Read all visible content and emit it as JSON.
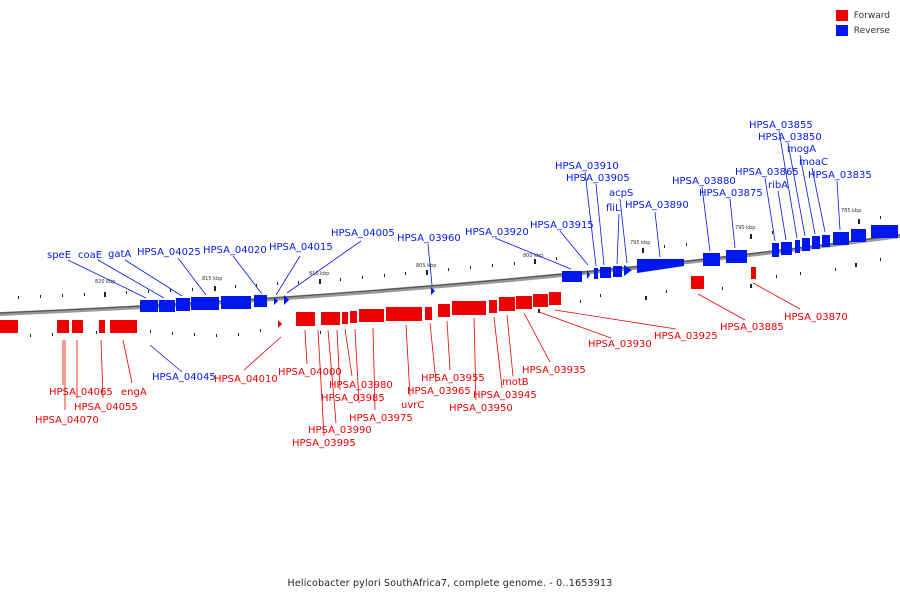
{
  "colors": {
    "forward": "#ee0000",
    "reverse": "#0018ee",
    "backbone": "#888888"
  },
  "legend": {
    "forward_label": "Forward",
    "reverse_label": "Reverse"
  },
  "caption": "Helicobacter pylori SouthAfrica7, complete genome. - 0..1653913",
  "scale": [
    "820 kbp",
    "815 kbp",
    "810 kbp",
    "805 kbp",
    "800 kbp",
    "795 kbp",
    "790 kbp",
    "785 kbp"
  ],
  "reverse_labels": [
    "speE",
    "coaE",
    "gatA",
    "HPSA_04025",
    "HPSA_04020",
    "HPSA_04015",
    "HPSA_04005",
    "HPSA_03960",
    "HPSA_03920",
    "HPSA_03915",
    "HPSA_03910",
    "HPSA_03905",
    "fliL",
    "acpS",
    "HPSA_03890",
    "HPSA_03880",
    "HPSA_03875",
    "HPSA_03865",
    "ribA",
    "HPSA_03855",
    "HPSA_03850",
    "mogA",
    "moaC",
    "HPSA_03835",
    "HPSA_04045"
  ],
  "forward_labels": [
    "HPSA_04065",
    "HPSA_04070",
    "HPSA_04055",
    "engA",
    "HPSA_04010",
    "HPSA_04000",
    "HPSA_03980",
    "HPSA_03985",
    "HPSA_03990",
    "HPSA_03995",
    "HPSA_03975",
    "uvrC",
    "HPSA_03955",
    "HPSA_03965",
    "HPSA_03950",
    "motB",
    "HPSA_03945",
    "HPSA_03935",
    "HPSA_03930",
    "HPSA_03925",
    "HPSA_03885",
    "HPSA_03870"
  ]
}
